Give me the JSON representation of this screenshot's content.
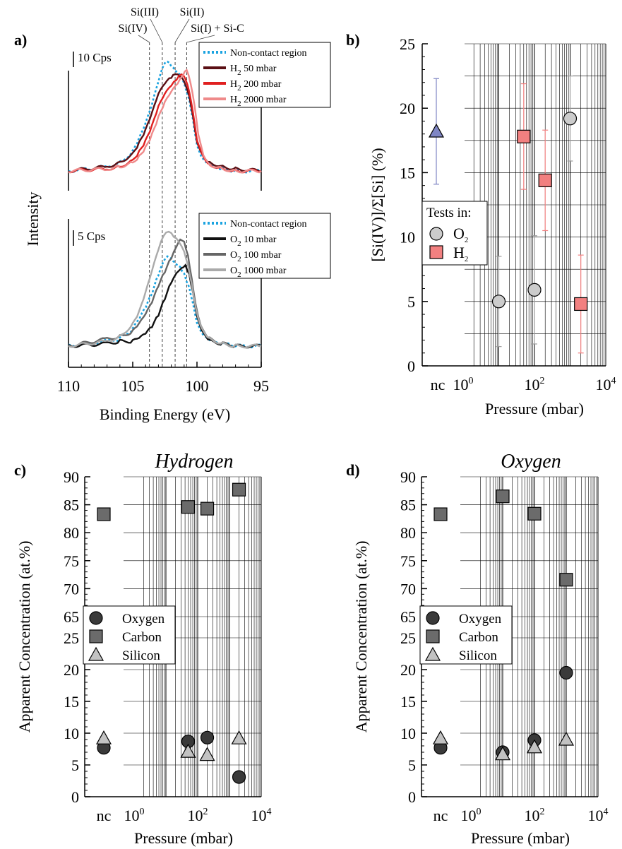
{
  "panel_labels": [
    "a)",
    "b)",
    "c)",
    "d)"
  ],
  "chart_data": [
    {
      "panel": "a",
      "type": "line",
      "xlabel": "Binding Energy (eV)",
      "ylabel": "Intensity",
      "x_reversed": true,
      "xlim": [
        110,
        95
      ],
      "xticks": [
        "110",
        "105",
        "100",
        "95"
      ],
      "reference_lines": [
        {
          "label": "Si(IV)",
          "x": 103.7
        },
        {
          "label": "Si(III)",
          "x": 102.7
        },
        {
          "label": "Si(II)",
          "x": 101.7
        },
        {
          "label": "Si(I) + Si-C",
          "x": 100.8
        }
      ],
      "plots": [
        {
          "scale_label": "10 Cps",
          "series": [
            {
              "name": "Non-contact region",
              "color": "#1aa3e0",
              "dash": true,
              "x": [
                110,
                107,
                106,
                105,
                104.5,
                104,
                103.5,
                103,
                102.6,
                102.3,
                102.0,
                101.7,
                101.3,
                101.0,
                100.6,
                100.3,
                100,
                99.5,
                99,
                98,
                97,
                95
              ],
              "y": [
                0,
                2,
                4,
                9,
                15,
                22,
                31,
                42,
                50,
                52,
                50,
                48,
                46,
                42,
                34,
                24,
                12,
                5,
                3,
                1,
                0,
                0
              ]
            },
            {
              "name": "H2 50 mbar",
              "color": "#5a0f14",
              "dash": false,
              "x": [
                110,
                107,
                106,
                105,
                104.5,
                104,
                103.5,
                103,
                102.5,
                102,
                101.7,
                101.3,
                101,
                100.6,
                100.3,
                100,
                99.5,
                99,
                98,
                97,
                95
              ],
              "y": [
                0,
                2,
                4,
                8,
                13,
                19,
                27,
                36,
                41,
                44,
                46,
                45,
                43,
                36,
                26,
                14,
                7,
                4,
                2,
                1,
                0
              ]
            },
            {
              "name": "H2 200 mbar",
              "color": "#e02020",
              "dash": false,
              "x": [
                110,
                107,
                106,
                105,
                104.5,
                104,
                103.5,
                103,
                102.5,
                102,
                101.6,
                101.2,
                100.9,
                100.6,
                100.3,
                100,
                99.5,
                99,
                98,
                97,
                95
              ],
              "y": [
                0,
                1,
                2,
                5,
                9,
                14,
                21,
                30,
                36,
                40,
                43,
                46,
                44,
                38,
                28,
                15,
                7,
                3,
                1,
                0,
                0
              ]
            },
            {
              "name": "H2 2000 mbar",
              "color": "#ef8a8a",
              "dash": false,
              "x": [
                110,
                107,
                106,
                105,
                104.5,
                104,
                103.5,
                103,
                102.5,
                102,
                101.5,
                101.1,
                100.8,
                100.5,
                100.2,
                99.9,
                99.5,
                99,
                98,
                97,
                95
              ],
              "y": [
                0,
                1,
                2,
                4,
                7,
                11,
                17,
                25,
                32,
                37,
                41,
                45,
                48,
                42,
                32,
                18,
                8,
                3,
                1,
                0,
                0
              ]
            }
          ]
        },
        {
          "scale_label": "5 Cps",
          "series": [
            {
              "name": "Non-contact region",
              "color": "#1aa3e0",
              "dash": true,
              "x": [
                110,
                107,
                106,
                105,
                104.5,
                104,
                103.5,
                103,
                102.6,
                102.3,
                102,
                101.7,
                101.3,
                101,
                100.6,
                100.3,
                100,
                99.5,
                99,
                98,
                97,
                95
              ],
              "y": [
                0,
                2,
                3,
                7,
                11,
                16,
                22,
                30,
                36,
                38,
                37,
                35,
                33,
                30,
                24,
                17,
                9,
                4,
                2,
                1,
                0,
                0
              ]
            },
            {
              "name": "O2 10 mbar",
              "color": "#111111",
              "dash": false,
              "x": [
                110,
                107,
                106,
                105,
                104.5,
                104,
                103.5,
                103,
                102.5,
                102,
                101.6,
                101.2,
                100.9,
                100.6,
                100.3,
                100,
                99.5,
                99,
                98,
                97,
                95
              ],
              "y": [
                0,
                1,
                2,
                2,
                3,
                5,
                8,
                13,
                20,
                27,
                31,
                33,
                34,
                30,
                22,
                12,
                5,
                2,
                1,
                0,
                0
              ]
            },
            {
              "name": "O2 100 mbar",
              "color": "#666666",
              "dash": false,
              "x": [
                110,
                107,
                106,
                105,
                104.5,
                104,
                103.5,
                103,
                102.5,
                102,
                101.6,
                101.3,
                101,
                100.7,
                100.4,
                100.1,
                99.7,
                99,
                98,
                97,
                95
              ],
              "y": [
                0,
                3,
                4,
                6,
                9,
                13,
                18,
                25,
                31,
                37,
                42,
                45,
                44,
                38,
                28,
                17,
                8,
                3,
                1,
                0,
                0
              ]
            },
            {
              "name": "O2 1000 mbar",
              "color": "#aaaaaa",
              "dash": false,
              "x": [
                110,
                107,
                106,
                105,
                104.5,
                104,
                103.5,
                103,
                102.6,
                102.2,
                101.8,
                101.4,
                101,
                100.7,
                100.4,
                100.1,
                99.7,
                99,
                98,
                97,
                95
              ],
              "y": [
                0,
                2,
                4,
                9,
                14,
                22,
                31,
                40,
                46,
                48,
                46,
                44,
                40,
                34,
                26,
                16,
                8,
                3,
                1,
                0,
                0
              ]
            }
          ]
        }
      ]
    },
    {
      "panel": "b",
      "type": "scatter",
      "xlabel": "Pressure (mbar)",
      "ylabel": "[Si(IV)]/Σ[Si] (%)",
      "ylim": [
        0,
        25
      ],
      "yticks": [
        "0",
        "5",
        "10",
        "15",
        "20",
        "25"
      ],
      "xscale": "log",
      "xlim": [
        1,
        10000
      ],
      "xticks": [
        "nc",
        "10",
        "10",
        "10"
      ],
      "xtick_exponents": [
        "",
        "0",
        "2",
        "4"
      ],
      "grid": true,
      "legend_title": "Tests in:",
      "legend_labels": [
        "O",
        "H"
      ],
      "legend_subscripts": [
        "2",
        "2"
      ],
      "series": [
        {
          "name": "nc",
          "marker": "triangle",
          "color": "#7f86c4",
          "points": [
            {
              "x": "nc",
              "y": 18.2,
              "err": 4.1
            }
          ]
        },
        {
          "name": "O2",
          "marker": "circle",
          "color": "#cccccc",
          "points": [
            {
              "x": 10,
              "y": 5.0,
              "err": 3.5
            },
            {
              "x": 100,
              "y": 5.9,
              "err": 4.2
            },
            {
              "x": 1000,
              "y": 19.2,
              "err": 3.3
            }
          ]
        },
        {
          "name": "H2",
          "marker": "square",
          "color": "#f28080",
          "points": [
            {
              "x": 50,
              "y": 17.8,
              "err": 4.1
            },
            {
              "x": 200,
              "y": 14.4,
              "err": 3.9
            },
            {
              "x": 2000,
              "y": 4.8,
              "err": 3.8
            }
          ]
        }
      ]
    },
    {
      "panel": "c",
      "type": "scatter",
      "title": "Hydrogen",
      "xlabel": "Pressure (mbar)",
      "ylabel": "Apparent Concentration (at.%)",
      "broken_y_axis": true,
      "ylim_lower": [
        0,
        25
      ],
      "ylim_upper": [
        65,
        90
      ],
      "yticks": [
        "0",
        "5",
        "10",
        "15",
        "20",
        "25",
        "65",
        "70",
        "75",
        "80",
        "85",
        "90"
      ],
      "xscale": "log",
      "xticks": [
        "nc",
        "10",
        "10",
        "10"
      ],
      "xtick_exponents": [
        "",
        "0",
        "2",
        "4"
      ],
      "legend": [
        "Oxygen",
        "Carbon",
        "Silicon"
      ],
      "series": [
        {
          "name": "Oxygen",
          "marker": "circle",
          "color": "#3a3a3a",
          "points": [
            {
              "x": "nc",
              "y": 7.7
            },
            {
              "x": 50,
              "y": 8.7
            },
            {
              "x": 200,
              "y": 9.3
            },
            {
              "x": 2000,
              "y": 3.1
            }
          ]
        },
        {
          "name": "Carbon",
          "marker": "square",
          "color": "#6b6b6b",
          "points": [
            {
              "x": "nc",
              "y": 83.3
            },
            {
              "x": 50,
              "y": 84.6
            },
            {
              "x": 200,
              "y": 84.3
            },
            {
              "x": 2000,
              "y": 87.7
            }
          ]
        },
        {
          "name": "Silicon",
          "marker": "triangle",
          "color": "#c2c2c2",
          "points": [
            {
              "x": "nc",
              "y": 9.2
            },
            {
              "x": 50,
              "y": 7.1
            },
            {
              "x": 200,
              "y": 6.6
            },
            {
              "x": 2000,
              "y": 9.2
            }
          ]
        }
      ]
    },
    {
      "panel": "d",
      "type": "scatter",
      "title": "Oxygen",
      "xlabel": "Pressure (mbar)",
      "ylabel": "Apparent Concentration (at.%)",
      "broken_y_axis": true,
      "ylim_lower": [
        0,
        25
      ],
      "ylim_upper": [
        65,
        90
      ],
      "yticks": [
        "0",
        "5",
        "10",
        "15",
        "20",
        "25",
        "65",
        "70",
        "75",
        "80",
        "85",
        "90"
      ],
      "xscale": "log",
      "xticks": [
        "nc",
        "10",
        "10",
        "10"
      ],
      "xtick_exponents": [
        "",
        "0",
        "2",
        "4"
      ],
      "legend": [
        "Oxygen",
        "Carbon",
        "Silicon"
      ],
      "series": [
        {
          "name": "Oxygen",
          "marker": "circle",
          "color": "#3a3a3a",
          "points": [
            {
              "x": "nc",
              "y": 7.7
            },
            {
              "x": 10,
              "y": 7.0
            },
            {
              "x": 100,
              "y": 8.9
            },
            {
              "x": 1000,
              "y": 19.5
            }
          ]
        },
        {
          "name": "Carbon",
          "marker": "square",
          "color": "#6b6b6b",
          "points": [
            {
              "x": "nc",
              "y": 83.3
            },
            {
              "x": 10,
              "y": 86.5
            },
            {
              "x": 100,
              "y": 83.4
            },
            {
              "x": 1000,
              "y": 71.6
            }
          ]
        },
        {
          "name": "Silicon",
          "marker": "triangle",
          "color": "#c2c2c2",
          "points": [
            {
              "x": "nc",
              "y": 9.2
            },
            {
              "x": 10,
              "y": 6.7
            },
            {
              "x": 100,
              "y": 7.8
            },
            {
              "x": 1000,
              "y": 9.0
            }
          ]
        }
      ]
    }
  ]
}
